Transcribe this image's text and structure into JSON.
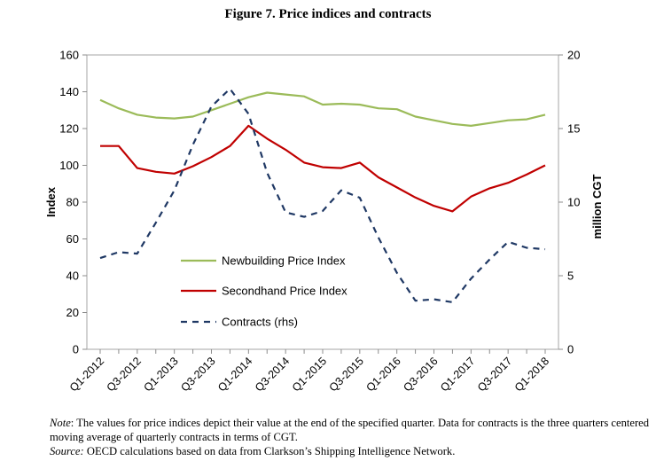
{
  "figure": {
    "title": "Figure 7. Price indices and contracts"
  },
  "chart_data": {
    "type": "line",
    "x": [
      "Q1-2012",
      "Q2-2012",
      "Q3-2012",
      "Q4-2012",
      "Q1-2013",
      "Q2-2013",
      "Q3-2013",
      "Q4-2013",
      "Q1-2014",
      "Q2-2014",
      "Q3-2014",
      "Q4-2014",
      "Q1-2015",
      "Q2-2015",
      "Q3-2015",
      "Q4-2015",
      "Q1-2016",
      "Q2-2016",
      "Q3-2016",
      "Q4-2016",
      "Q1-2017",
      "Q2-2017",
      "Q3-2017",
      "Q4-2017",
      "Q1-2018"
    ],
    "xtick_labels": [
      "Q1-2012",
      "Q3-2012",
      "Q1-2013",
      "Q3-2013",
      "Q1-2014",
      "Q3-2014",
      "Q1-2015",
      "Q3-2015",
      "Q1-2016",
      "Q3-2016",
      "Q1-2017",
      "Q3-2017",
      "Q1-2018"
    ],
    "ylabel": "Index",
    "ylim": [
      0,
      160
    ],
    "yticks": [
      0,
      20,
      40,
      60,
      80,
      100,
      120,
      140,
      160
    ],
    "y2label": "million CGT",
    "y2lim": [
      0,
      20
    ],
    "y2ticks": [
      0,
      5,
      10,
      15,
      20
    ],
    "grid": false,
    "legend_position": "bottom-left",
    "series": [
      {
        "name": "Newbuilding Price Index",
        "axis": "left",
        "color": "#9bbb59",
        "style": "solid",
        "values": [
          135.5,
          131,
          127.5,
          126,
          125.5,
          126.5,
          130,
          133.5,
          137,
          139.5,
          138.5,
          137.5,
          133,
          133.5,
          133,
          131,
          130.5,
          126.5,
          124.5,
          122.5,
          121.5,
          123,
          124.5,
          125,
          127.5
        ]
      },
      {
        "name": "Secondhand Price Index",
        "axis": "left",
        "color": "#c00000",
        "style": "solid",
        "values": [
          110.5,
          110.5,
          98.5,
          96.5,
          95.5,
          99.5,
          104.5,
          110.5,
          121.5,
          114.5,
          108.5,
          101.5,
          99,
          98.5,
          101.5,
          93.5,
          88,
          82.5,
          78,
          75,
          83,
          87.5,
          90.5,
          95,
          100
        ]
      },
      {
        "name": "Contracts (rhs)",
        "axis": "right",
        "color": "#1f3864",
        "style": "dashed",
        "values": [
          6.2,
          6.6,
          6.5,
          8.6,
          10.8,
          13.9,
          16.5,
          17.7,
          16.0,
          12.0,
          9.3,
          9.0,
          9.4,
          10.8,
          10.3,
          7.6,
          5.2,
          3.3,
          3.4,
          3.2,
          4.8,
          6.1,
          7.3,
          6.9,
          6.8
        ]
      }
    ]
  },
  "notes": {
    "note_label": "Note",
    "note_text": ": The values for price indices depict their value at the end of the specified quarter. Data for contracts is the three quarters centered moving average of quarterly contracts in terms of CGT.",
    "source_label": "Source:",
    "source_text": " OECD calculations based on data from Clarkson’s Shipping Intelligence Network."
  }
}
